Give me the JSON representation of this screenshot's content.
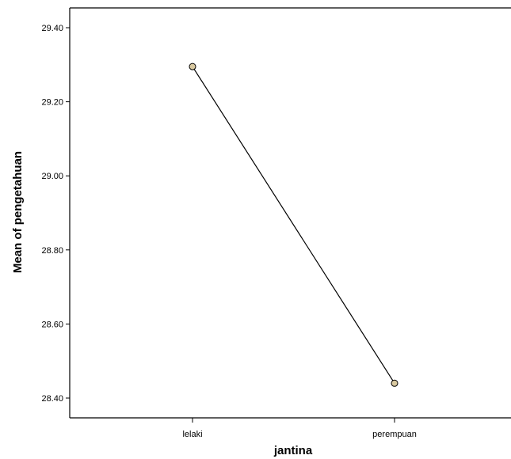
{
  "chart_data": {
    "type": "line",
    "title": "",
    "xlabel": "jantina",
    "ylabel": "Mean of pengetahuan",
    "categories": [
      "lelaki",
      "perempuan"
    ],
    "series": [
      {
        "values": [
          29.295,
          28.44
        ]
      }
    ],
    "ylim": [
      28.37,
      29.45
    ],
    "yticks": [
      28.4,
      28.6,
      28.8,
      29.0,
      29.2,
      29.4
    ],
    "ytick_labels": [
      "28.40",
      "28.60",
      "28.80",
      "29.00",
      "29.20",
      "29.40"
    ],
    "grid": false,
    "legend": "none",
    "colors": {
      "line": "#000000",
      "marker_fill": "#d9c9a0",
      "marker_stroke": "#000000",
      "axis": "#000000"
    }
  }
}
